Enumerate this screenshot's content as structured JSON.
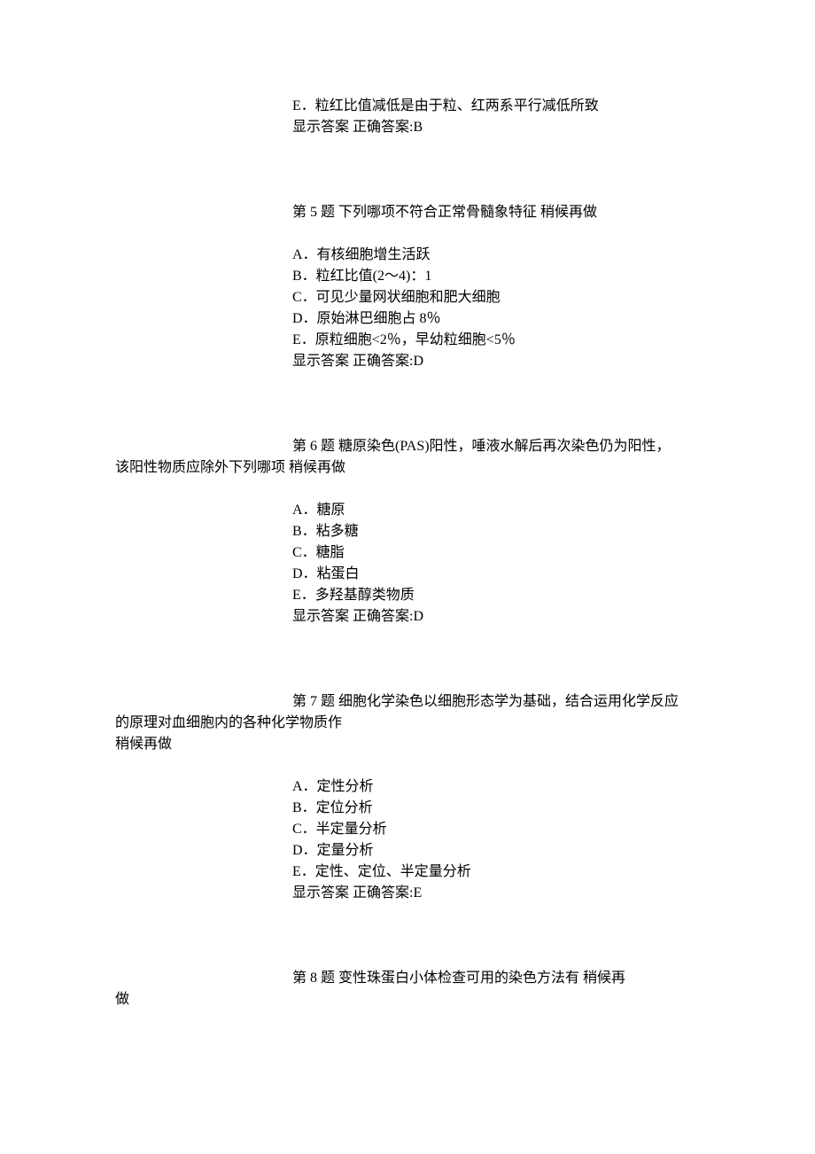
{
  "q4": {
    "optE": "E．粒红比值减低是由于粒、红两系平行减低所致",
    "answerLine": "显示答案       正确答案:B"
  },
  "q5": {
    "title": "第  5  题  下列哪项不符合正常骨髓象特征           稍候再做",
    "optA": "A．有核细胞增生活跃",
    "optB": "B．粒红比值(2～4)：1",
    "optC": "C．可见少量网状细胞和肥大细胞",
    "optD": "D．原始淋巴细胞占 8％",
    "optE": "E．原粒细胞<2％，早幼粒细胞<5％",
    "answerLine": "显示答案       正确答案:D"
  },
  "q6": {
    "title": "第  6  题  糖原染色(PAS)阳性，唾液水解后再次染色仍为阳性，",
    "titleCont": "该阳性物质应除外下列哪项           稍候再做",
    "optA": "A．糖原",
    "optB": "B．粘多糖",
    "optC": "C．糖脂",
    "optD": "D．粘蛋白",
    "optE": "E．多羟基醇类物质",
    "answerLine": "显示答案       正确答案:D"
  },
  "q7": {
    "title": "第  7  题  细胞化学染色以细胞形态学为基础，结合运用化学反应",
    "titleCont1": "的原理对血细胞内的各种化学物质作",
    "titleCont2": "稍候再做",
    "optA": "A．定性分析",
    "optB": "B．定位分析",
    "optC": "C．半定量分析",
    "optD": "D．定量分析",
    "optE": "E．定性、定位、半定量分析",
    "answerLine": "显示答案       正确答案:E"
  },
  "q8": {
    "title": "第  8  题  变性珠蛋白小体检查可用的染色方法有           稍候再",
    "titleCont": "做"
  }
}
